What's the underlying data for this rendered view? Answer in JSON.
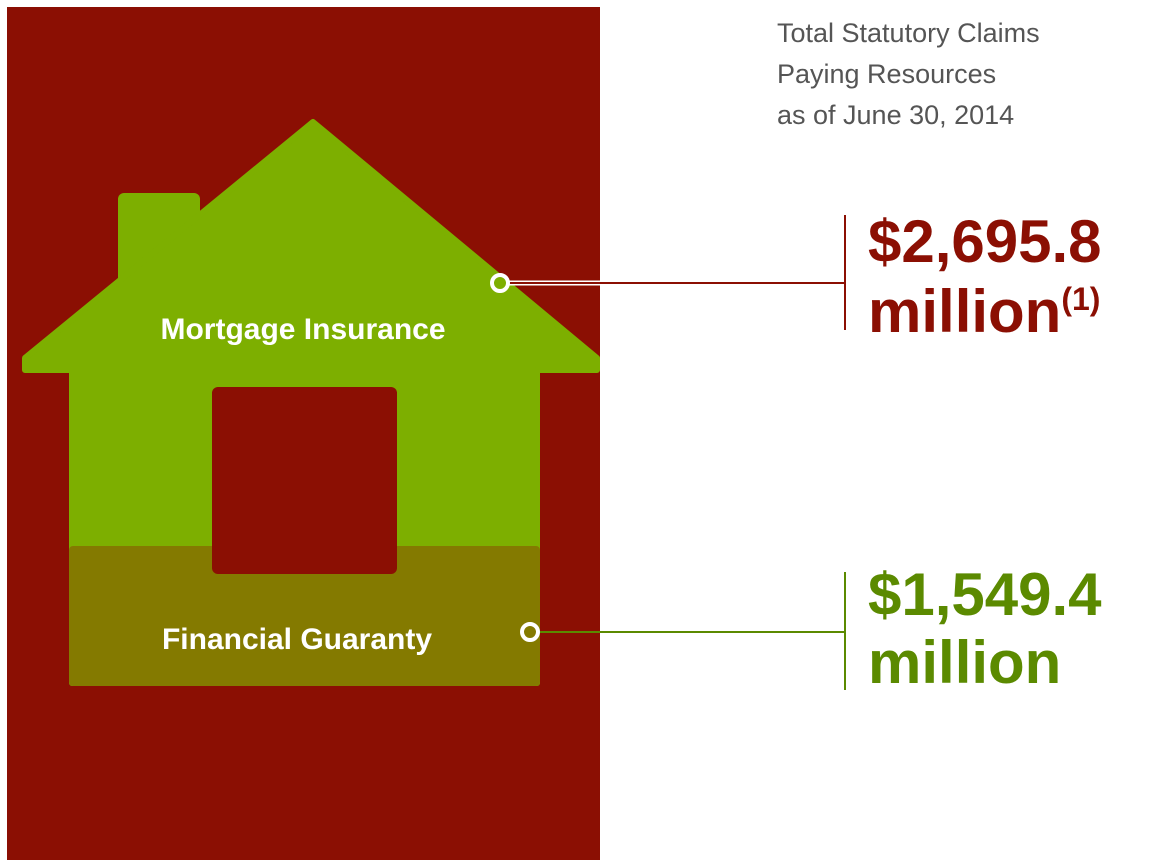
{
  "heading": {
    "lines": [
      "Total Statutory Claims",
      "Paying Resources",
      "as of June 30, 2014"
    ]
  },
  "segments": [
    {
      "label": "Mortgage Insurance",
      "amount": "$2,695.8",
      "unit": "million",
      "footnote": "(1)"
    },
    {
      "label": "Financial Guaranty",
      "amount": "$1,549.4",
      "unit": "million"
    }
  ]
}
